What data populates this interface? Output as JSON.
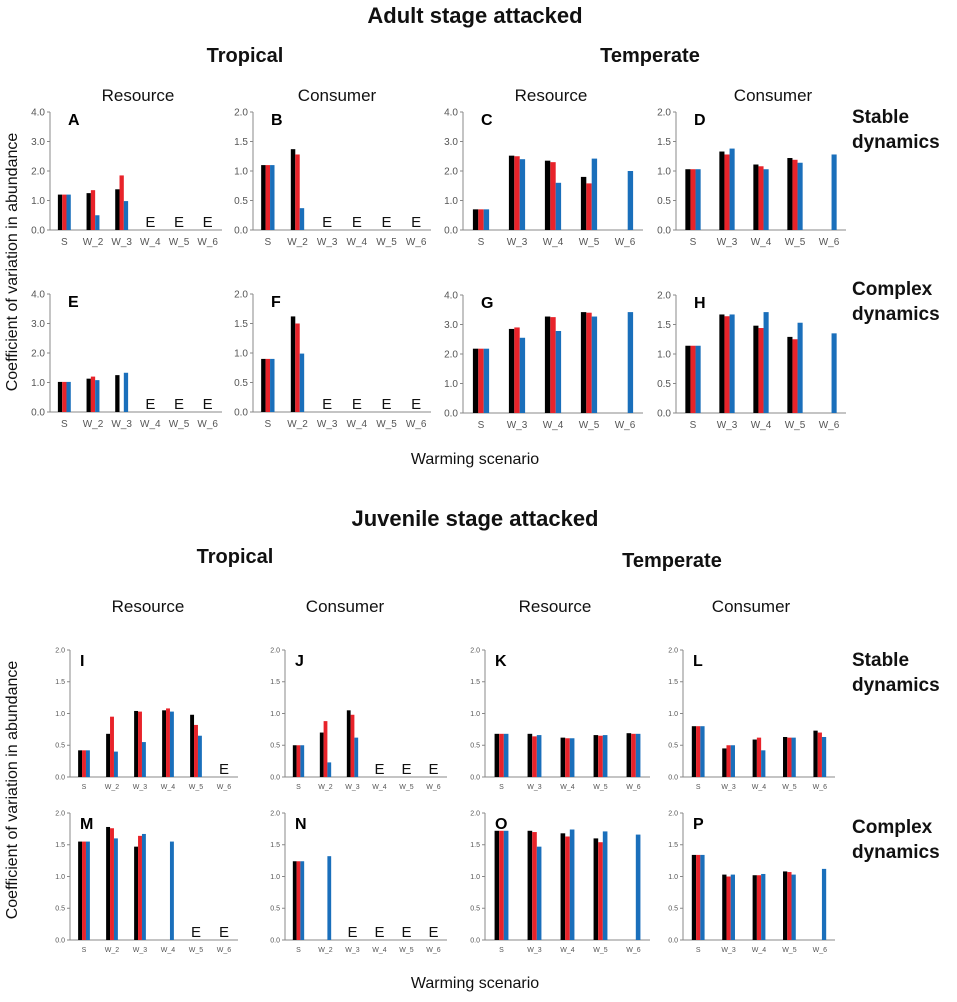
{
  "colors": {
    "black": "#000000",
    "red": "#e8232a",
    "blue": "#1a6fbb",
    "axis": "#888888"
  },
  "sections": [
    {
      "title": "Adult stage attacked",
      "climate_left": "Tropical",
      "climate_right": "Temperate",
      "headers": [
        "Resource",
        "Consumer",
        "Resource",
        "Consumer"
      ],
      "dynamics_top": [
        "Stable",
        "dynamics"
      ],
      "dynamics_bottom": [
        "Complex",
        "dynamics"
      ],
      "ylabel": "Coefficient of variation in abundance",
      "xlabel": "Warming scenario"
    },
    {
      "title": "Juvenile stage attacked",
      "climate_left": "Tropical",
      "climate_right": "Temperate",
      "headers": [
        "Resource",
        "Consumer",
        "Resource",
        "Consumer"
      ],
      "dynamics_top": [
        "Stable",
        "dynamics"
      ],
      "dynamics_bottom": [
        "Complex",
        "dynamics"
      ],
      "ylabel": "Coefficient of variation in abundance",
      "xlabel": "Warming scenario"
    }
  ],
  "chart_data": [
    {
      "letter": "A",
      "type": "bar",
      "ylim": [
        0,
        4
      ],
      "yticks": [
        "0.0",
        "1.0",
        "2.0",
        "3.0",
        "4.0"
      ],
      "categories": [
        "S",
        "W_2",
        "W_3",
        "W_4",
        "W_5",
        "W_6"
      ],
      "series": [
        {
          "name": "black",
          "values": [
            1.2,
            1.25,
            1.38,
            null,
            null,
            null
          ]
        },
        {
          "name": "red",
          "values": [
            1.2,
            1.35,
            1.85,
            null,
            null,
            null
          ]
        },
        {
          "name": "blue",
          "values": [
            1.2,
            0.5,
            0.98,
            null,
            null,
            null
          ]
        }
      ],
      "extinct": [
        false,
        false,
        false,
        true,
        true,
        true
      ]
    },
    {
      "letter": "B",
      "type": "bar",
      "ylim": [
        0,
        2
      ],
      "yticks": [
        "0.0",
        "0.5",
        "1.0",
        "1.5",
        "2.0"
      ],
      "categories": [
        "S",
        "W_2",
        "W_3",
        "W_4",
        "W_5",
        "W_6"
      ],
      "series": [
        {
          "name": "black",
          "values": [
            1.1,
            1.37,
            null,
            null,
            null,
            null
          ]
        },
        {
          "name": "red",
          "values": [
            1.1,
            1.28,
            null,
            null,
            null,
            null
          ]
        },
        {
          "name": "blue",
          "values": [
            1.1,
            0.37,
            null,
            null,
            null,
            null
          ]
        }
      ],
      "extinct": [
        false,
        false,
        true,
        true,
        true,
        true
      ]
    },
    {
      "letter": "C",
      "type": "bar",
      "ylim": [
        0,
        4
      ],
      "yticks": [
        "0.0",
        "1.0",
        "2.0",
        "3.0",
        "4.0"
      ],
      "categories": [
        "S",
        "W_3",
        "W_4",
        "W_5",
        "W_6"
      ],
      "series": [
        {
          "name": "black",
          "values": [
            0.7,
            2.52,
            2.35,
            1.8,
            null
          ]
        },
        {
          "name": "red",
          "values": [
            0.7,
            2.5,
            2.3,
            1.58,
            null
          ]
        },
        {
          "name": "blue",
          "values": [
            0.7,
            2.4,
            1.6,
            2.42,
            2.0
          ]
        }
      ],
      "extinct": [
        false,
        false,
        false,
        false,
        false
      ]
    },
    {
      "letter": "D",
      "type": "bar",
      "ylim": [
        0,
        2
      ],
      "yticks": [
        "0.0",
        "0.5",
        "1.0",
        "1.5",
        "2.0"
      ],
      "categories": [
        "S",
        "W_3",
        "W_4",
        "W_5",
        "W_6"
      ],
      "series": [
        {
          "name": "black",
          "values": [
            1.03,
            1.33,
            1.11,
            1.22,
            null
          ]
        },
        {
          "name": "red",
          "values": [
            1.03,
            1.28,
            1.08,
            1.19,
            null
          ]
        },
        {
          "name": "blue",
          "values": [
            1.03,
            1.38,
            1.03,
            1.14,
            1.28
          ]
        }
      ],
      "extinct": [
        false,
        false,
        false,
        false,
        false
      ]
    },
    {
      "letter": "E",
      "type": "bar",
      "ylim": [
        0,
        4
      ],
      "yticks": [
        "0.0",
        "1.0",
        "2.0",
        "3.0",
        "4.0"
      ],
      "categories": [
        "S",
        "W_2",
        "W_3",
        "W_4",
        "W_5",
        "W_6"
      ],
      "series": [
        {
          "name": "black",
          "values": [
            1.02,
            1.13,
            1.25,
            null,
            null,
            null
          ]
        },
        {
          "name": "red",
          "values": [
            1.02,
            1.2,
            null,
            null,
            null,
            null
          ]
        },
        {
          "name": "blue",
          "values": [
            1.02,
            1.08,
            1.33,
            null,
            null,
            null
          ]
        }
      ],
      "extinct": [
        false,
        false,
        false,
        true,
        true,
        true
      ]
    },
    {
      "letter": "F",
      "type": "bar",
      "ylim": [
        0,
        2
      ],
      "yticks": [
        "0.0",
        "0.5",
        "1.0",
        "1.5",
        "2.0"
      ],
      "categories": [
        "S",
        "W_2",
        "W_3",
        "W_4",
        "W_5",
        "W_6"
      ],
      "series": [
        {
          "name": "black",
          "values": [
            0.9,
            1.62,
            null,
            null,
            null,
            null
          ]
        },
        {
          "name": "red",
          "values": [
            0.9,
            1.5,
            null,
            null,
            null,
            null
          ]
        },
        {
          "name": "blue",
          "values": [
            0.9,
            0.99,
            null,
            null,
            null,
            null
          ]
        }
      ],
      "extinct": [
        false,
        false,
        true,
        true,
        true,
        true
      ]
    },
    {
      "letter": "G",
      "type": "bar",
      "ylim": [
        0,
        4
      ],
      "yticks": [
        "0.0",
        "1.0",
        "2.0",
        "3.0",
        "4.0"
      ],
      "categories": [
        "S",
        "W_3",
        "W_4",
        "W_5",
        "W_6"
      ],
      "series": [
        {
          "name": "black",
          "values": [
            2.18,
            2.85,
            3.27,
            3.42,
            null
          ]
        },
        {
          "name": "red",
          "values": [
            2.18,
            2.9,
            3.25,
            3.4,
            null
          ]
        },
        {
          "name": "blue",
          "values": [
            2.18,
            2.55,
            2.78,
            3.27,
            3.42
          ]
        }
      ],
      "extinct": [
        false,
        false,
        false,
        false,
        false
      ]
    },
    {
      "letter": "H",
      "type": "bar",
      "ylim": [
        0,
        2
      ],
      "yticks": [
        "0.0",
        "0.5",
        "1.0",
        "1.5",
        "2.0"
      ],
      "categories": [
        "S",
        "W_3",
        "W_4",
        "W_5",
        "W_6"
      ],
      "series": [
        {
          "name": "black",
          "values": [
            1.14,
            1.67,
            1.48,
            1.29,
            null
          ]
        },
        {
          "name": "red",
          "values": [
            1.14,
            1.64,
            1.44,
            1.25,
            null
          ]
        },
        {
          "name": "blue",
          "values": [
            1.14,
            1.67,
            1.71,
            1.53,
            1.35
          ]
        }
      ],
      "extinct": [
        false,
        false,
        false,
        false,
        false
      ]
    },
    {
      "letter": "I",
      "type": "bar",
      "ylim": [
        0,
        2
      ],
      "yticks": [
        "0.0",
        "0.5",
        "1.0",
        "1.5",
        "2.0"
      ],
      "categories": [
        "S",
        "W_2",
        "W_3",
        "W_4",
        "W_5",
        "W_6"
      ],
      "series": [
        {
          "name": "black",
          "values": [
            0.42,
            0.68,
            1.04,
            1.05,
            0.98,
            null
          ]
        },
        {
          "name": "red",
          "values": [
            0.42,
            0.95,
            1.03,
            1.08,
            0.82,
            null
          ]
        },
        {
          "name": "blue",
          "values": [
            0.42,
            0.4,
            0.55,
            1.03,
            0.65,
            null
          ]
        }
      ],
      "extinct": [
        false,
        false,
        false,
        false,
        false,
        true
      ]
    },
    {
      "letter": "J",
      "type": "bar",
      "ylim": [
        0,
        2
      ],
      "yticks": [
        "0.0",
        "0.5",
        "1.0",
        "1.5",
        "2.0"
      ],
      "categories": [
        "S",
        "W_2",
        "W_3",
        "W_4",
        "W_5",
        "W_6"
      ],
      "series": [
        {
          "name": "black",
          "values": [
            0.5,
            0.7,
            1.05,
            null,
            null,
            null
          ]
        },
        {
          "name": "red",
          "values": [
            0.5,
            0.88,
            0.98,
            null,
            null,
            null
          ]
        },
        {
          "name": "blue",
          "values": [
            0.5,
            0.23,
            0.62,
            null,
            null,
            null
          ]
        }
      ],
      "extinct": [
        false,
        false,
        false,
        true,
        true,
        true
      ]
    },
    {
      "letter": "K",
      "type": "bar",
      "ylim": [
        0,
        2
      ],
      "yticks": [
        "0.0",
        "0.5",
        "1.0",
        "1.5",
        "2.0"
      ],
      "categories": [
        "S",
        "W_3",
        "W_4",
        "W_5",
        "W_6"
      ],
      "series": [
        {
          "name": "black",
          "values": [
            0.68,
            0.68,
            0.62,
            0.66,
            0.69
          ]
        },
        {
          "name": "red",
          "values": [
            0.68,
            0.64,
            0.61,
            0.65,
            0.68
          ]
        },
        {
          "name": "blue",
          "values": [
            0.68,
            0.66,
            0.61,
            0.66,
            0.68
          ]
        }
      ],
      "extinct": [
        false,
        false,
        false,
        false,
        false
      ]
    },
    {
      "letter": "L",
      "type": "bar",
      "ylim": [
        0,
        2
      ],
      "yticks": [
        "0.0",
        "0.5",
        "1.0",
        "1.5",
        "2.0"
      ],
      "categories": [
        "S",
        "W_3",
        "W_4",
        "W_5",
        "W_6"
      ],
      "series": [
        {
          "name": "black",
          "values": [
            0.8,
            0.45,
            0.59,
            0.63,
            0.73
          ]
        },
        {
          "name": "red",
          "values": [
            0.8,
            0.5,
            0.62,
            0.62,
            0.7
          ]
        },
        {
          "name": "blue",
          "values": [
            0.8,
            0.5,
            0.42,
            0.62,
            0.63
          ]
        }
      ],
      "extinct": [
        false,
        false,
        false,
        false,
        false
      ]
    },
    {
      "letter": "M",
      "type": "bar",
      "ylim": [
        0,
        2
      ],
      "yticks": [
        "0.0",
        "0.5",
        "1.0",
        "1.5",
        "2.0"
      ],
      "categories": [
        "S",
        "W_2",
        "W_3",
        "W_4",
        "W_5",
        "W_6"
      ],
      "series": [
        {
          "name": "black",
          "values": [
            1.55,
            1.78,
            1.47,
            null,
            null,
            null
          ]
        },
        {
          "name": "red",
          "values": [
            1.55,
            1.76,
            1.64,
            null,
            null,
            null
          ]
        },
        {
          "name": "blue",
          "values": [
            1.55,
            1.6,
            1.67,
            1.55,
            null,
            null
          ]
        }
      ],
      "extinct": [
        false,
        false,
        false,
        false,
        true,
        true
      ]
    },
    {
      "letter": "N",
      "type": "bar",
      "ylim": [
        0,
        2
      ],
      "yticks": [
        "0.0",
        "0.5",
        "1.0",
        "1.5",
        "2.0"
      ],
      "categories": [
        "S",
        "W_2",
        "W_3",
        "W_4",
        "W_5",
        "W_6"
      ],
      "series": [
        {
          "name": "black",
          "values": [
            1.24,
            null,
            null,
            null,
            null,
            null
          ]
        },
        {
          "name": "red",
          "values": [
            1.24,
            null,
            null,
            null,
            null,
            null
          ]
        },
        {
          "name": "blue",
          "values": [
            1.24,
            1.32,
            null,
            null,
            null,
            null
          ]
        }
      ],
      "extinct": [
        false,
        false,
        true,
        true,
        true,
        true
      ]
    },
    {
      "letter": "O",
      "type": "bar",
      "ylim": [
        0,
        2
      ],
      "yticks": [
        "0.0",
        "0.5",
        "1.0",
        "1.5",
        "2.0"
      ],
      "categories": [
        "S",
        "W_3",
        "W_4",
        "W_5",
        "W_6"
      ],
      "series": [
        {
          "name": "black",
          "values": [
            1.72,
            1.72,
            1.68,
            1.6,
            null
          ]
        },
        {
          "name": "red",
          "values": [
            1.72,
            1.7,
            1.63,
            1.54,
            null
          ]
        },
        {
          "name": "blue",
          "values": [
            1.72,
            1.47,
            1.74,
            1.71,
            1.66
          ]
        }
      ],
      "extinct": [
        false,
        false,
        false,
        false,
        false
      ]
    },
    {
      "letter": "P",
      "type": "bar",
      "ylim": [
        0,
        2
      ],
      "yticks": [
        "0.0",
        "0.5",
        "1.0",
        "1.5",
        "2.0"
      ],
      "categories": [
        "S",
        "W_3",
        "W_4",
        "W_5",
        "W_6"
      ],
      "series": [
        {
          "name": "black",
          "values": [
            1.34,
            1.03,
            1.02,
            1.08,
            null
          ]
        },
        {
          "name": "red",
          "values": [
            1.34,
            1.0,
            1.02,
            1.07,
            null
          ]
        },
        {
          "name": "blue",
          "values": [
            1.34,
            1.03,
            1.04,
            1.03,
            1.12
          ]
        }
      ],
      "extinct": [
        false,
        false,
        false,
        false,
        false
      ]
    }
  ]
}
